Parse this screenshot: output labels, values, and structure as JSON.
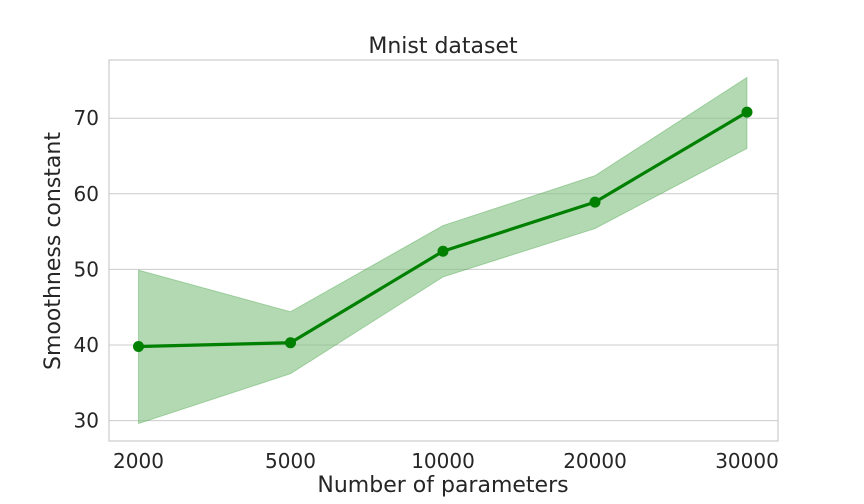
{
  "chart_data": {
    "type": "line",
    "title": "Mnist dataset",
    "xlabel": "Number of parameters",
    "ylabel": "Smoothness constant",
    "x_categories": [
      "2000",
      "5000",
      "10000",
      "20000",
      "30000"
    ],
    "series": [
      {
        "values": [
          39.8,
          40.3,
          52.4,
          58.9,
          70.8
        ],
        "lower": [
          29.6,
          36.2,
          49.0,
          55.4,
          66.0
        ],
        "upper": [
          49.9,
          44.4,
          55.8,
          62.4,
          75.4
        ],
        "color": "#008000",
        "band_color": "#7fbf7f"
      }
    ],
    "y_ticks": [
      30,
      40,
      50,
      60,
      70
    ],
    "ylim": [
      27.3,
      77.7
    ],
    "grid": true,
    "legend": "none"
  }
}
